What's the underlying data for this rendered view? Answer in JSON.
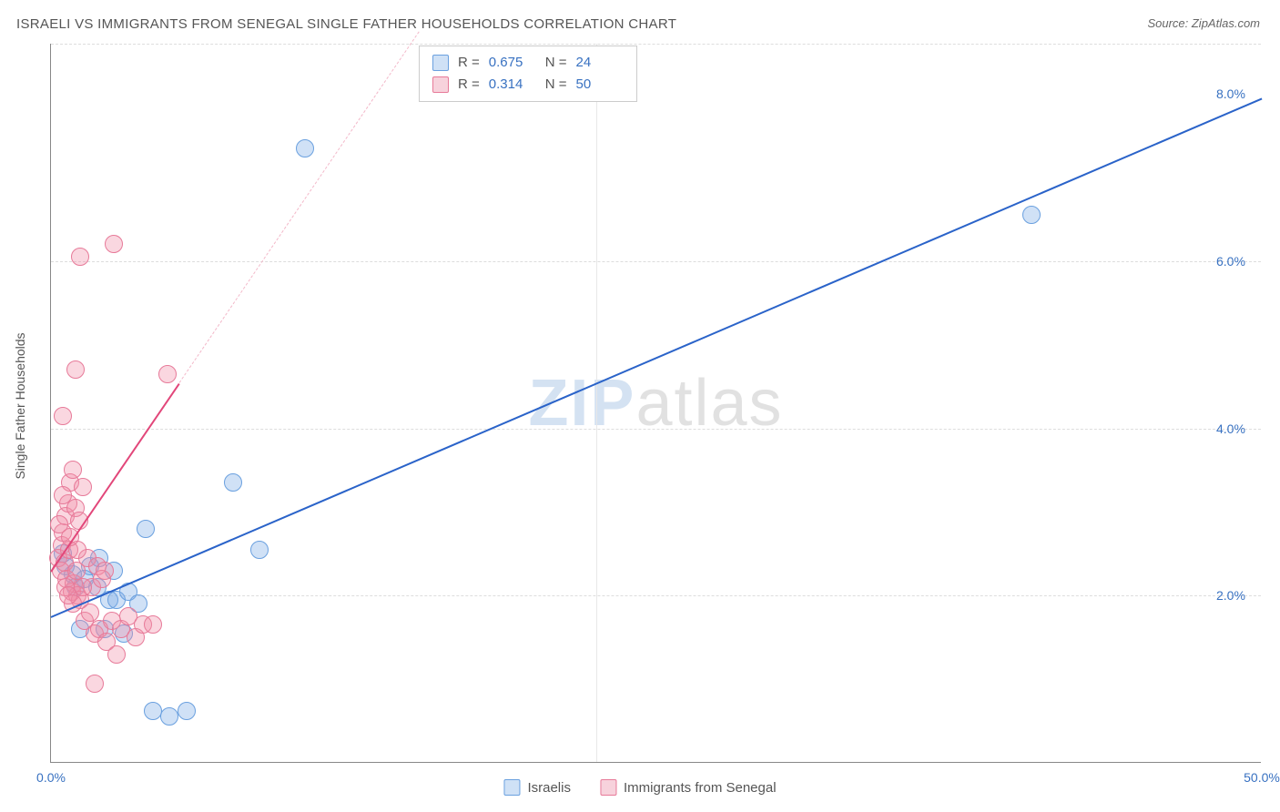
{
  "title": "ISRAELI VS IMMIGRANTS FROM SENEGAL SINGLE FATHER HOUSEHOLDS CORRELATION CHART",
  "source": "Source: ZipAtlas.com",
  "watermark": {
    "part1": "ZIP",
    "part2": "atlas"
  },
  "chart": {
    "type": "scatter",
    "background_color": "#ffffff",
    "grid_color": "#dddddd",
    "axis_color": "#888888",
    "xlim": [
      0,
      50
    ],
    "ylim": [
      0,
      8.6
    ],
    "x_ticks": [
      {
        "pos": 0,
        "label": "0.0%"
      },
      {
        "pos": 50,
        "label": "50.0%"
      }
    ],
    "y_ticks": [
      {
        "pos": 2.0,
        "label": "2.0%"
      },
      {
        "pos": 4.0,
        "label": "4.0%"
      },
      {
        "pos": 6.0,
        "label": "6.0%"
      },
      {
        "pos": 8.0,
        "label": "8.0%"
      }
    ],
    "y_gridlines": [
      2.0,
      4.0,
      6.0,
      8.6
    ],
    "x_gridlines": [
      22.5
    ],
    "y_axis_label": "Single Father Households",
    "axis_tick_color": "#3871c1",
    "axis_label_fontsize": 14,
    "title_fontsize": 15,
    "marker_radius": 10,
    "marker_stroke_width": 1.5,
    "series": [
      {
        "name": "Israelis",
        "color_fill": "rgba(120,170,230,0.35)",
        "color_stroke": "#6aa0df",
        "legend_swatch_fill": "#cfe1f6",
        "legend_swatch_stroke": "#6aa0df",
        "R": "0.675",
        "N": "24",
        "regression": {
          "color": "#2a63c9",
          "width": 2.4,
          "x1": 0,
          "y1": 1.75,
          "x2": 50,
          "y2": 7.95,
          "dashed_extension": false
        },
        "points": [
          {
            "x": 0.6,
            "y": 2.35
          },
          {
            "x": 0.9,
            "y": 2.25
          },
          {
            "x": 1.0,
            "y": 2.1
          },
          {
            "x": 1.6,
            "y": 2.35
          },
          {
            "x": 2.0,
            "y": 2.45
          },
          {
            "x": 2.4,
            "y": 1.95
          },
          {
            "x": 2.7,
            "y": 1.95
          },
          {
            "x": 3.2,
            "y": 2.05
          },
          {
            "x": 3.6,
            "y": 1.9
          },
          {
            "x": 2.2,
            "y": 1.6
          },
          {
            "x": 3.0,
            "y": 1.55
          },
          {
            "x": 1.2,
            "y": 1.6
          },
          {
            "x": 3.9,
            "y": 2.8
          },
          {
            "x": 4.2,
            "y": 0.62
          },
          {
            "x": 4.9,
            "y": 0.55
          },
          {
            "x": 5.6,
            "y": 0.62
          },
          {
            "x": 7.5,
            "y": 3.35
          },
          {
            "x": 8.6,
            "y": 2.55
          },
          {
            "x": 10.5,
            "y": 7.35
          },
          {
            "x": 40.5,
            "y": 6.55
          },
          {
            "x": 1.4,
            "y": 2.2
          },
          {
            "x": 0.5,
            "y": 2.5
          },
          {
            "x": 1.9,
            "y": 2.1
          },
          {
            "x": 2.6,
            "y": 2.3
          }
        ]
      },
      {
        "name": "Immigrants from Senegal",
        "color_fill": "rgba(240,140,165,0.35)",
        "color_stroke": "#e77a99",
        "legend_swatch_fill": "#f7d2dc",
        "legend_swatch_stroke": "#e77a99",
        "R": "0.314",
        "N": "50",
        "regression": {
          "color": "#e2477a",
          "width": 2.2,
          "x1": 0,
          "y1": 2.3,
          "x2": 5.3,
          "y2": 4.55,
          "dashed_extension": true,
          "dash_color": "#f3b8c9",
          "dash_x2": 15.2,
          "dash_y2": 8.75
        },
        "points": [
          {
            "x": 0.3,
            "y": 2.45
          },
          {
            "x": 0.4,
            "y": 2.3
          },
          {
            "x": 0.45,
            "y": 2.6
          },
          {
            "x": 0.5,
            "y": 2.75
          },
          {
            "x": 0.55,
            "y": 2.4
          },
          {
            "x": 0.6,
            "y": 2.95
          },
          {
            "x": 0.65,
            "y": 2.2
          },
          {
            "x": 0.7,
            "y": 3.1
          },
          {
            "x": 0.75,
            "y": 2.55
          },
          {
            "x": 0.8,
            "y": 3.35
          },
          {
            "x": 0.85,
            "y": 2.05
          },
          {
            "x": 0.9,
            "y": 3.5
          },
          {
            "x": 0.95,
            "y": 2.15
          },
          {
            "x": 1.0,
            "y": 3.05
          },
          {
            "x": 1.05,
            "y": 2.3
          },
          {
            "x": 1.1,
            "y": 2.0
          },
          {
            "x": 1.15,
            "y": 2.9
          },
          {
            "x": 1.2,
            "y": 1.95
          },
          {
            "x": 1.3,
            "y": 3.3
          },
          {
            "x": 1.4,
            "y": 1.7
          },
          {
            "x": 1.5,
            "y": 2.45
          },
          {
            "x": 1.6,
            "y": 1.8
          },
          {
            "x": 1.7,
            "y": 2.1
          },
          {
            "x": 1.8,
            "y": 1.55
          },
          {
            "x": 1.9,
            "y": 2.35
          },
          {
            "x": 2.0,
            "y": 1.6
          },
          {
            "x": 2.1,
            "y": 2.2
          },
          {
            "x": 2.3,
            "y": 1.45
          },
          {
            "x": 2.5,
            "y": 1.7
          },
          {
            "x": 2.7,
            "y": 1.3
          },
          {
            "x": 2.9,
            "y": 1.6
          },
          {
            "x": 3.2,
            "y": 1.75
          },
          {
            "x": 3.5,
            "y": 1.5
          },
          {
            "x": 3.8,
            "y": 1.65
          },
          {
            "x": 4.2,
            "y": 1.65
          },
          {
            "x": 1.0,
            "y": 4.7
          },
          {
            "x": 0.5,
            "y": 4.15
          },
          {
            "x": 1.2,
            "y": 6.05
          },
          {
            "x": 2.6,
            "y": 6.2
          },
          {
            "x": 4.8,
            "y": 4.65
          },
          {
            "x": 1.8,
            "y": 0.95
          },
          {
            "x": 2.2,
            "y": 2.3
          },
          {
            "x": 0.35,
            "y": 2.85
          },
          {
            "x": 0.6,
            "y": 2.1
          },
          {
            "x": 0.9,
            "y": 1.9
          },
          {
            "x": 1.1,
            "y": 2.55
          },
          {
            "x": 0.7,
            "y": 2.0
          },
          {
            "x": 0.5,
            "y": 3.2
          },
          {
            "x": 0.8,
            "y": 2.7
          },
          {
            "x": 1.3,
            "y": 2.1
          }
        ]
      }
    ],
    "legend_top": {
      "R_label": "R =",
      "N_label": "N ="
    },
    "legend_bottom": [
      {
        "label": "Israelis",
        "series_idx": 0
      },
      {
        "label": "Immigrants from Senegal",
        "series_idx": 1
      }
    ]
  }
}
